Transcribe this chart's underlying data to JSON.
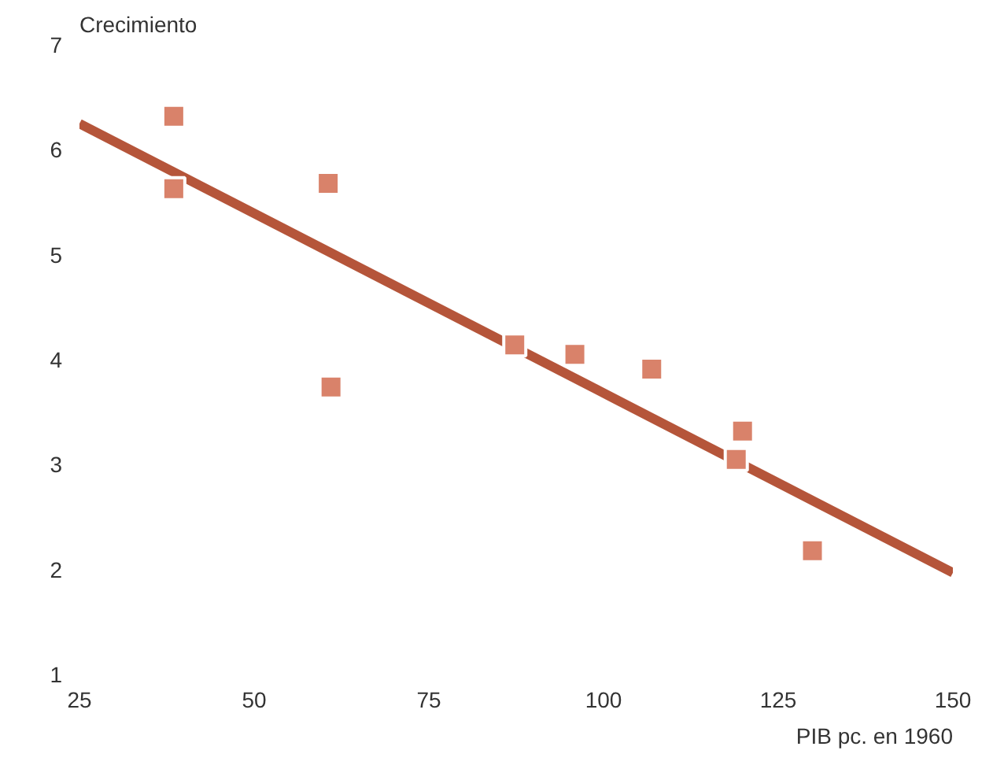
{
  "chart_data": {
    "type": "scatter",
    "xlabel": "PIB pc. en 1960",
    "ylabel": "Crecimiento",
    "xlim": [
      25,
      150
    ],
    "xticks": [
      25,
      50,
      75,
      100,
      125,
      150
    ],
    "ylim": [
      1,
      7
    ],
    "yticks": [
      1,
      2,
      3,
      4,
      5,
      6,
      7
    ],
    "grid": false,
    "series": [
      {
        "color": "#d9826a",
        "marker": "square",
        "x": [
          38.5,
          38.5,
          60.6,
          61.0,
          87.3,
          95.9,
          106.9,
          119.9,
          119.0,
          129.9
        ],
        "values": [
          6.32,
          5.63,
          5.68,
          3.74,
          4.14,
          4.05,
          3.91,
          3.32,
          3.05,
          2.18
        ]
      },
      {
        "type": "line",
        "color": "#b5553a",
        "x": [
          25,
          150
        ],
        "values": [
          6.25,
          1.97
        ]
      }
    ]
  }
}
